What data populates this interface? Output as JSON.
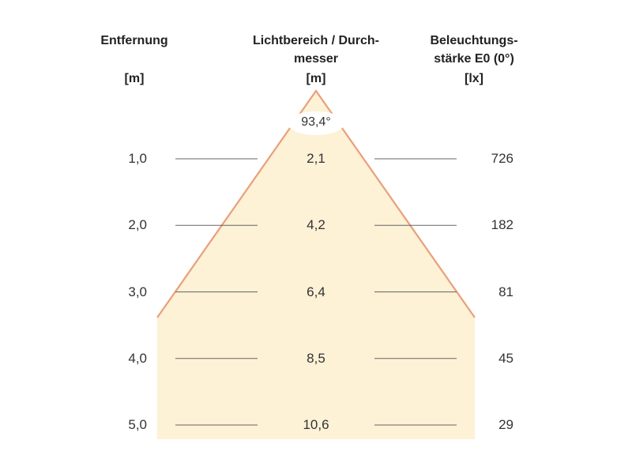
{
  "headers": {
    "distance": [
      "Entfernung"
    ],
    "distance_unit": "[m]",
    "beam": [
      "Lichtbereich / Durch-",
      "messer"
    ],
    "beam_unit": "[m]",
    "illuminance": [
      "Beleuchtungs-",
      "stärke E0 (0°)"
    ],
    "illuminance_unit": "[lx]"
  },
  "beam_angle": "93,4°",
  "rows": [
    {
      "distance": "1,0",
      "diameter": "2,1",
      "illuminance": "726"
    },
    {
      "distance": "2,0",
      "diameter": "4,2",
      "illuminance": "182"
    },
    {
      "distance": "3,0",
      "diameter": "6,4",
      "illuminance": "81"
    },
    {
      "distance": "4,0",
      "diameter": "8,5",
      "illuminance": "45"
    },
    {
      "distance": "5,0",
      "diameter": "10,6",
      "illuminance": "29"
    }
  ],
  "colors": {
    "beam_fill": "#fdf1d6",
    "beam_edge": "#e8a07a",
    "rule": "#666666"
  }
}
